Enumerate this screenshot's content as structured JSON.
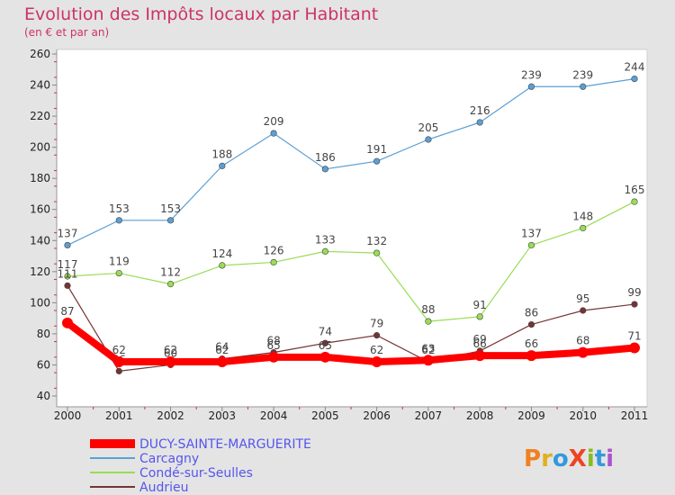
{
  "chart_data": {
    "type": "line",
    "title": "Evolution des Impôts locaux par Habitant",
    "subtitle": "(en € et par an)",
    "x": [
      "2000",
      "2001",
      "2002",
      "2003",
      "2004",
      "2005",
      "2006",
      "2007",
      "2008",
      "2009",
      "2010",
      "2011"
    ],
    "ylim": [
      40,
      260
    ],
    "yticks": [
      "40",
      "60",
      "80",
      "100",
      "120",
      "140",
      "160",
      "180",
      "200",
      "220",
      "240",
      "260"
    ],
    "grid": false,
    "legend_position": "bottom-left",
    "series": [
      {
        "name": "Carcagny",
        "color": "#5b9fd4",
        "values": [
          137,
          153,
          153,
          188,
          209,
          186,
          191,
          205,
          216,
          239,
          239,
          244
        ]
      },
      {
        "name": "Condé-sur-Seulles",
        "color": "#99dd55",
        "values": [
          117,
          119,
          112,
          124,
          126,
          133,
          132,
          88,
          91,
          137,
          148,
          165
        ]
      },
      {
        "name": "Audrieu",
        "color": "#773333",
        "values": [
          111,
          56,
          60,
          64,
          68,
          74,
          79,
          62,
          69,
          86,
          95,
          99
        ]
      },
      {
        "name": "DUCY-SAINTE-MARGUERITE",
        "color": "#ff0000",
        "values": [
          87,
          62,
          62,
          62,
          65,
          65,
          62,
          63,
          66,
          66,
          68,
          71
        ]
      }
    ],
    "legend": [
      {
        "name": "DUCY-SAINTE-MARGUERITE",
        "color": "#ff0000",
        "text_color": "#5555ee"
      },
      {
        "name": "Carcagny",
        "color": "#5b9fd4",
        "text_color": "#5555ee"
      },
      {
        "name": "Condé-sur-Seulles",
        "color": "#99dd55",
        "text_color": "#5555ee"
      },
      {
        "name": "Audrieu",
        "color": "#773333",
        "text_color": "#5555ee"
      }
    ]
  },
  "logo": {
    "text": "ProXiti",
    "colors": [
      "#f08020",
      "#e0b020",
      "#3399dd",
      "#ee4422",
      "#88bb22",
      "#3399dd",
      "#aa55cc"
    ]
  }
}
